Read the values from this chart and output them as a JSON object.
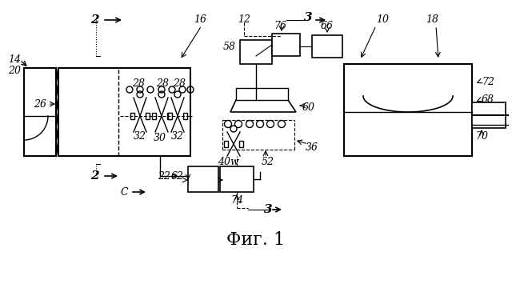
{
  "title": "Фиг. 1",
  "bg_color": "#ffffff",
  "line_color": "#000000",
  "title_fontsize": 16,
  "label_fontsize": 9,
  "italic_labels": true
}
